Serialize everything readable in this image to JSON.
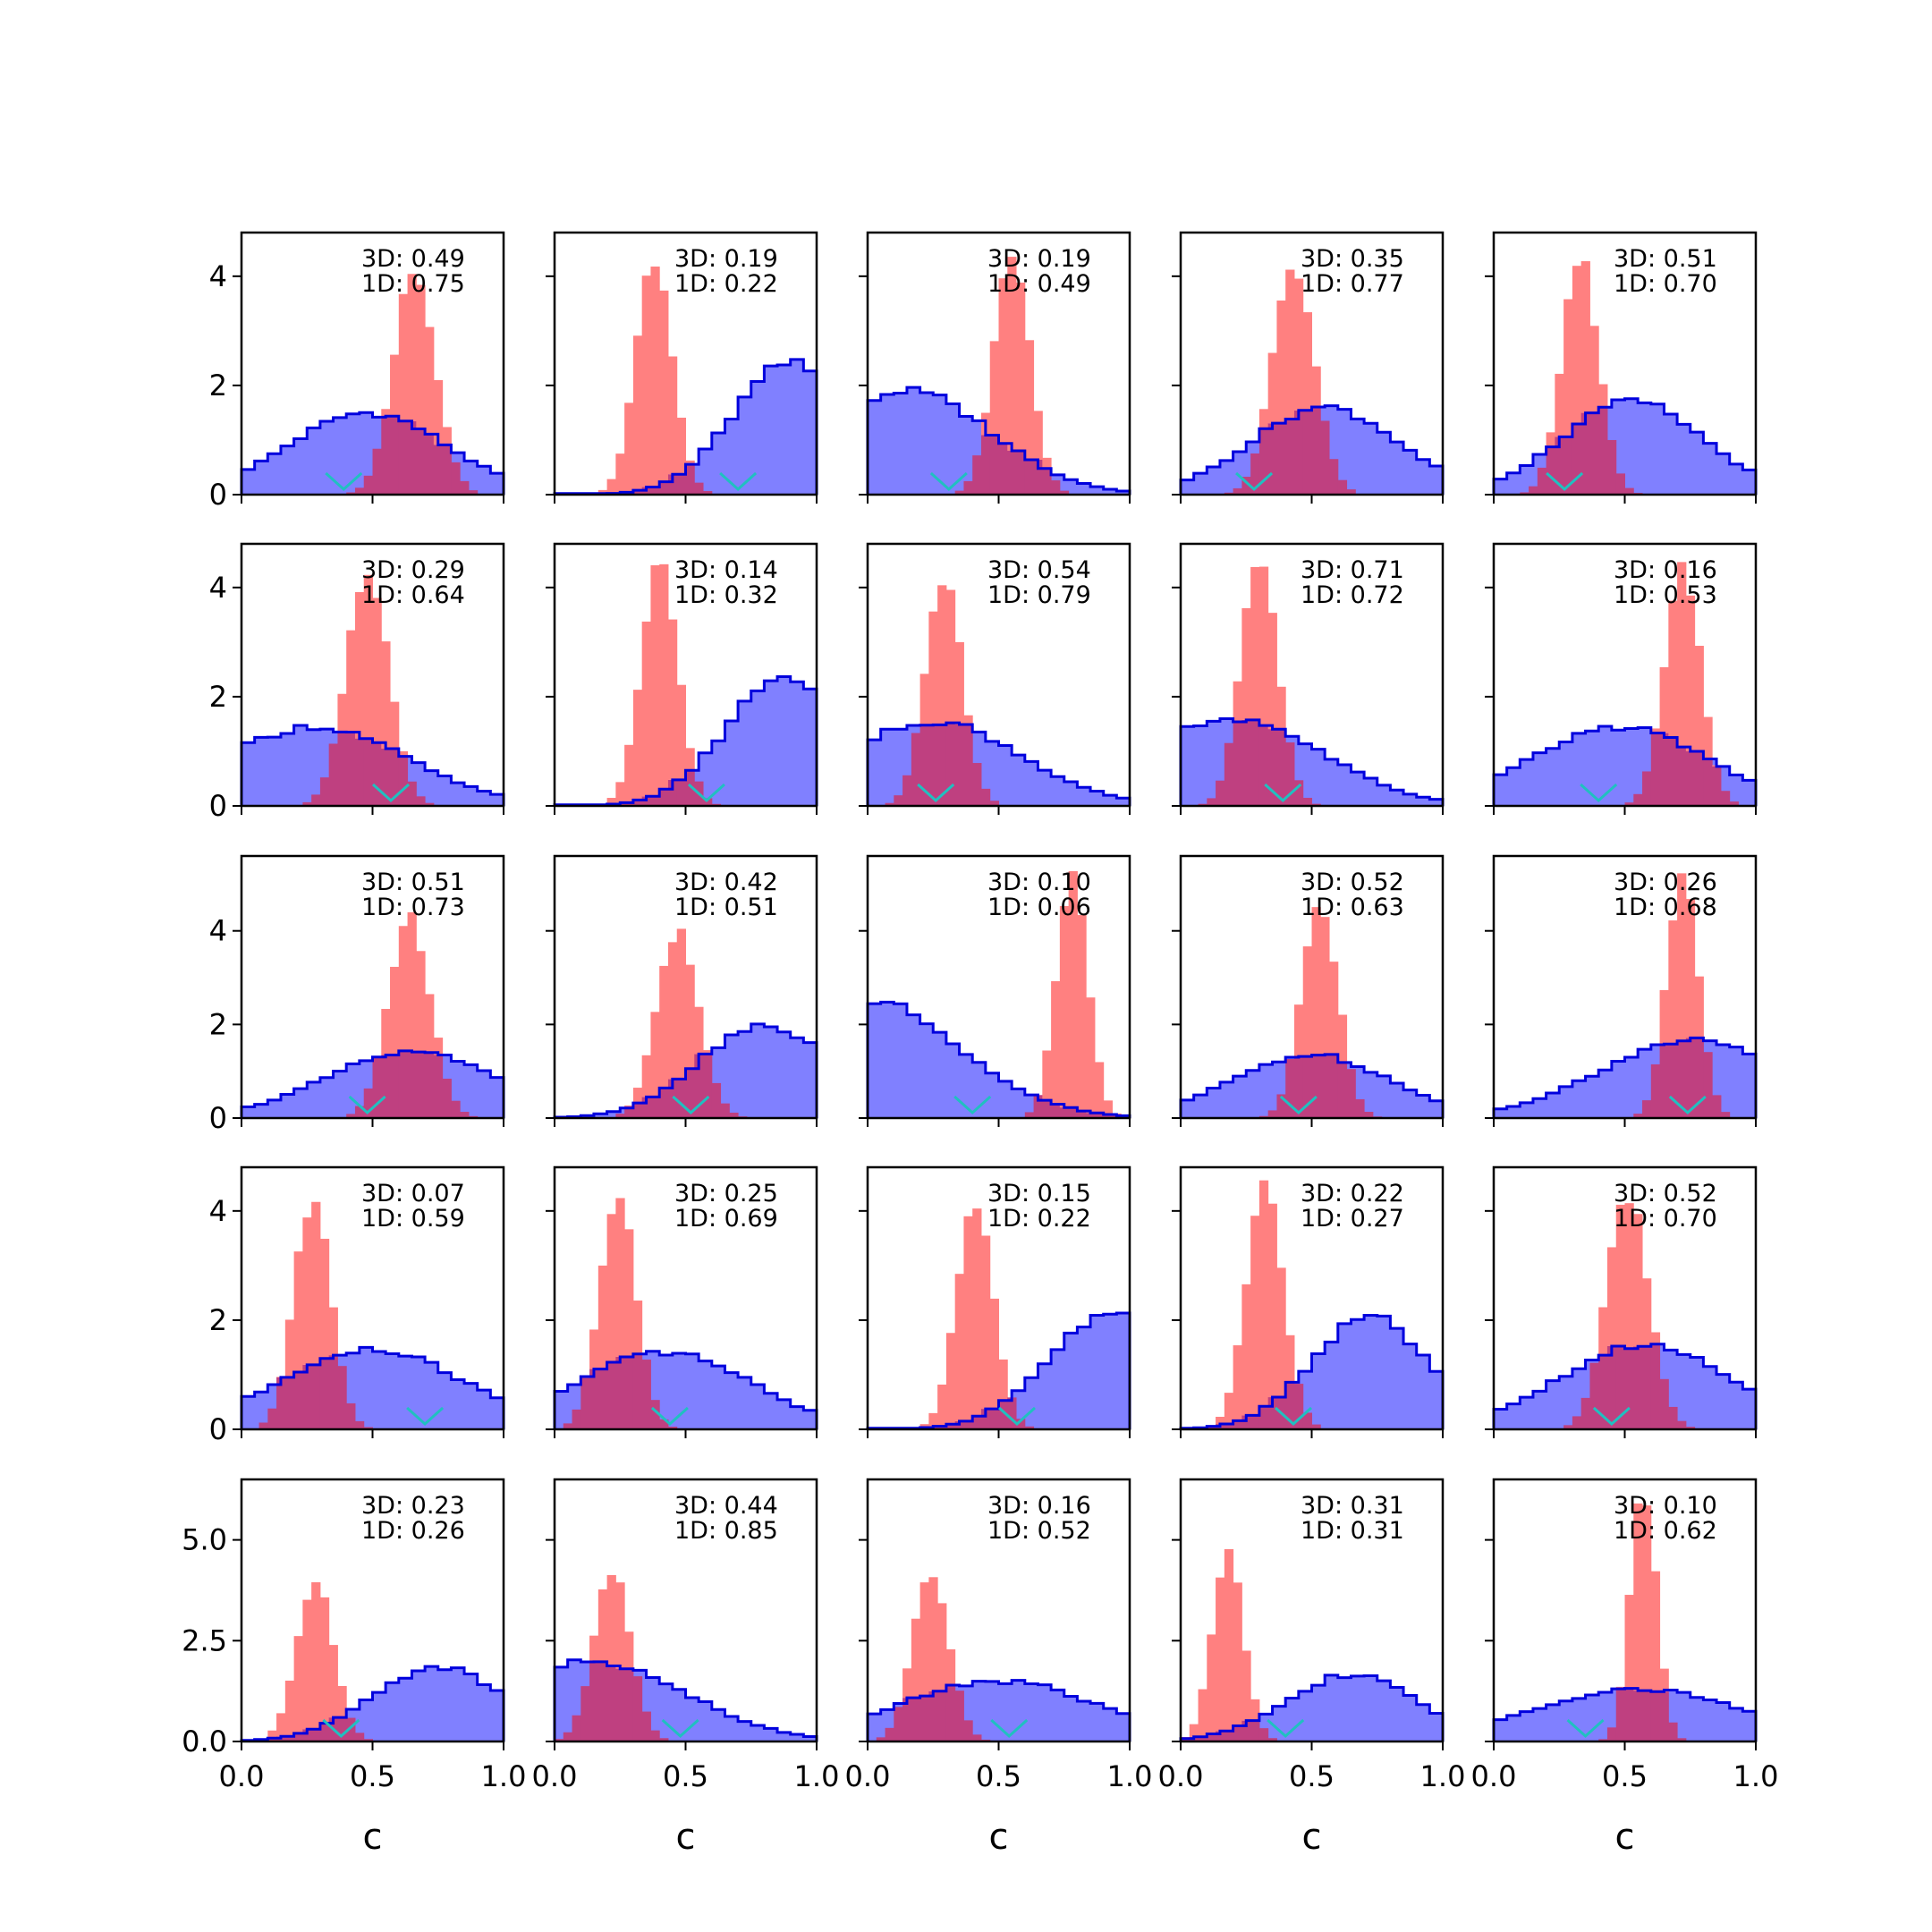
{
  "figure": {
    "colors": {
      "blue_fill": "#8080ff",
      "blue_edge": "#0000dd",
      "red_fill": "#ff8080",
      "overlap_fill": "#bf4080",
      "overlap_edge": "#6a0a6a",
      "marker": "#20c0c0",
      "axes": "#000000"
    }
  },
  "chart_data": [
    {
      "type": "histogram",
      "row": 0,
      "col": 0,
      "annotation": [
        "3D: 0.49",
        "1D: 0.75"
      ],
      "ylim": [
        0,
        4.8
      ],
      "yticks": [
        0,
        2,
        4
      ],
      "xlim": [
        0,
        1
      ],
      "marker_x": 0.39,
      "blue": {
        "peak": 0.48,
        "spread": 0.3,
        "height": 1.5
      },
      "red": {
        "peak": 0.66,
        "spread": 0.08,
        "height": 4.1
      }
    },
    {
      "type": "histogram",
      "row": 0,
      "col": 1,
      "annotation": [
        "3D: 0.19",
        "1D: 0.22"
      ],
      "ylim": [
        0,
        4.8
      ],
      "yticks": [
        0,
        2,
        4
      ],
      "xlim": [
        0,
        1
      ],
      "marker_x": 0.7,
      "blue": {
        "peak": 0.9,
        "spread": 0.22,
        "height": 2.4
      },
      "red": {
        "peak": 0.38,
        "spread": 0.07,
        "height": 4.3
      }
    },
    {
      "type": "histogram",
      "row": 0,
      "col": 2,
      "annotation": [
        "3D: 0.19",
        "1D: 0.49"
      ],
      "ylim": [
        0,
        4.8
      ],
      "yticks": [
        0,
        2,
        4
      ],
      "xlim": [
        0,
        1
      ],
      "marker_x": 0.31,
      "blue": {
        "peak": 0.15,
        "spread": 0.32,
        "height": 1.9
      },
      "red": {
        "peak": 0.55,
        "spread": 0.07,
        "height": 4.3
      }
    },
    {
      "type": "histogram",
      "row": 0,
      "col": 3,
      "annotation": [
        "3D: 0.35",
        "1D: 0.77"
      ],
      "ylim": [
        0,
        4.8
      ],
      "yticks": [
        0,
        2,
        4
      ],
      "xlim": [
        0,
        1
      ],
      "marker_x": 0.28,
      "blue": {
        "peak": 0.55,
        "spread": 0.28,
        "height": 1.6
      },
      "red": {
        "peak": 0.43,
        "spread": 0.08,
        "height": 4.2
      }
    },
    {
      "type": "histogram",
      "row": 0,
      "col": 4,
      "annotation": [
        "3D: 0.51",
        "1D: 0.70"
      ],
      "ylim": [
        0,
        4.8
      ],
      "yticks": [
        0,
        2,
        4
      ],
      "xlim": [
        0,
        1
      ],
      "marker_x": 0.27,
      "blue": {
        "peak": 0.53,
        "spread": 0.27,
        "height": 1.7
      },
      "red": {
        "peak": 0.33,
        "spread": 0.07,
        "height": 4.3
      }
    },
    {
      "type": "histogram",
      "row": 1,
      "col": 0,
      "annotation": [
        "3D: 0.29",
        "1D: 0.64"
      ],
      "ylim": [
        0,
        4.8
      ],
      "yticks": [
        0,
        2,
        4
      ],
      "xlim": [
        0,
        1
      ],
      "marker_x": 0.57,
      "blue": {
        "peak": 0.28,
        "spread": 0.35,
        "height": 1.45
      },
      "red": {
        "peak": 0.48,
        "spread": 0.08,
        "height": 4.3
      }
    },
    {
      "type": "histogram",
      "row": 1,
      "col": 1,
      "annotation": [
        "3D: 0.14",
        "1D: 0.32"
      ],
      "ylim": [
        0,
        4.8
      ],
      "yticks": [
        0,
        2,
        4
      ],
      "xlim": [
        0,
        1
      ],
      "marker_x": 0.58,
      "blue": {
        "peak": 0.87,
        "spread": 0.22,
        "height": 2.3
      },
      "red": {
        "peak": 0.4,
        "spread": 0.07,
        "height": 4.4
      }
    },
    {
      "type": "histogram",
      "row": 1,
      "col": 2,
      "annotation": [
        "3D: 0.54",
        "1D: 0.79"
      ],
      "ylim": [
        0,
        4.8
      ],
      "yticks": [
        0,
        2,
        4
      ],
      "xlim": [
        0,
        1
      ],
      "marker_x": 0.26,
      "blue": {
        "peak": 0.25,
        "spread": 0.33,
        "height": 1.55
      },
      "red": {
        "peak": 0.29,
        "spread": 0.07,
        "height": 4.2
      }
    },
    {
      "type": "histogram",
      "row": 1,
      "col": 3,
      "annotation": [
        "3D: 0.71",
        "1D: 0.72"
      ],
      "ylim": [
        0,
        4.8
      ],
      "yticks": [
        0,
        2,
        4
      ],
      "xlim": [
        0,
        1
      ],
      "marker_x": 0.39,
      "blue": {
        "peak": 0.2,
        "spread": 0.34,
        "height": 1.6
      },
      "red": {
        "peak": 0.3,
        "spread": 0.07,
        "height": 4.5
      }
    },
    {
      "type": "histogram",
      "row": 1,
      "col": 4,
      "annotation": [
        "3D: 0.16",
        "1D: 0.53"
      ],
      "ylim": [
        0,
        4.8
      ],
      "yticks": [
        0,
        2,
        4
      ],
      "xlim": [
        0,
        1
      ],
      "marker_x": 0.4,
      "blue": {
        "peak": 0.48,
        "spread": 0.33,
        "height": 1.45
      },
      "red": {
        "peak": 0.72,
        "spread": 0.07,
        "height": 4.3
      }
    },
    {
      "type": "histogram",
      "row": 2,
      "col": 0,
      "annotation": [
        "3D: 0.51",
        "1D: 0.73"
      ],
      "ylim": [
        0,
        5.6
      ],
      "yticks": [
        0,
        2,
        4
      ],
      "xlim": [
        0,
        1
      ],
      "marker_x": 0.48,
      "blue": {
        "peak": 0.65,
        "spread": 0.33,
        "height": 1.4
      },
      "red": {
        "peak": 0.64,
        "spread": 0.08,
        "height": 4.3
      }
    },
    {
      "type": "histogram",
      "row": 2,
      "col": 1,
      "annotation": [
        "3D: 0.42",
        "1D: 0.51"
      ],
      "ylim": [
        0,
        5.6
      ],
      "yticks": [
        0,
        2,
        4
      ],
      "xlim": [
        0,
        1
      ],
      "marker_x": 0.52,
      "blue": {
        "peak": 0.8,
        "spread": 0.25,
        "height": 2.0
      },
      "red": {
        "peak": 0.47,
        "spread": 0.08,
        "height": 4.0
      }
    },
    {
      "type": "histogram",
      "row": 2,
      "col": 2,
      "annotation": [
        "3D: 0.10",
        "1D: 0.06"
      ],
      "ylim": [
        0,
        5.6
      ],
      "yticks": [
        0,
        2,
        4
      ],
      "xlim": [
        0,
        1
      ],
      "marker_x": 0.4,
      "blue": {
        "peak": 0.0,
        "spread": 0.35,
        "height": 2.5
      },
      "red": {
        "peak": 0.78,
        "spread": 0.06,
        "height": 5.2
      }
    },
    {
      "type": "histogram",
      "row": 2,
      "col": 3,
      "annotation": [
        "3D: 0.52",
        "1D: 0.63"
      ],
      "ylim": [
        0,
        5.6
      ],
      "yticks": [
        0,
        2,
        4
      ],
      "xlim": [
        0,
        1
      ],
      "marker_x": 0.45,
      "blue": {
        "peak": 0.5,
        "spread": 0.3,
        "height": 1.35
      },
      "red": {
        "peak": 0.53,
        "spread": 0.07,
        "height": 4.6
      }
    },
    {
      "type": "histogram",
      "row": 2,
      "col": 4,
      "annotation": [
        "3D: 0.26",
        "1D: 0.68"
      ],
      "ylim": [
        0,
        5.6
      ],
      "yticks": [
        0,
        2,
        4
      ],
      "xlim": [
        0,
        1
      ],
      "marker_x": 0.74,
      "blue": {
        "peak": 0.75,
        "spread": 0.35,
        "height": 1.65
      },
      "red": {
        "peak": 0.72,
        "spread": 0.06,
        "height": 5.2
      }
    },
    {
      "type": "histogram",
      "row": 3,
      "col": 0,
      "annotation": [
        "3D: 0.07",
        "1D: 0.59"
      ],
      "ylim": [
        0,
        4.8
      ],
      "yticks": [
        0,
        2,
        4
      ],
      "xlim": [
        0,
        1
      ],
      "marker_x": 0.7,
      "blue": {
        "peak": 0.5,
        "spread": 0.35,
        "height": 1.45
      },
      "red": {
        "peak": 0.27,
        "spread": 0.07,
        "height": 4.2
      }
    },
    {
      "type": "histogram",
      "row": 3,
      "col": 1,
      "annotation": [
        "3D: 0.25",
        "1D: 0.69"
      ],
      "ylim": [
        0,
        4.8
      ],
      "yticks": [
        0,
        2,
        4
      ],
      "xlim": [
        0,
        1
      ],
      "marker_x": 0.44,
      "blue": {
        "peak": 0.42,
        "spread": 0.33,
        "height": 1.4
      },
      "red": {
        "peak": 0.24,
        "spread": 0.07,
        "height": 4.3
      }
    },
    {
      "type": "histogram",
      "row": 3,
      "col": 2,
      "annotation": [
        "3D: 0.15",
        "1D: 0.22"
      ],
      "ylim": [
        0,
        4.8
      ],
      "yticks": [
        0,
        2,
        4
      ],
      "xlim": [
        0,
        1
      ],
      "marker_x": 0.57,
      "blue": {
        "peak": 0.95,
        "spread": 0.25,
        "height": 2.2
      },
      "red": {
        "peak": 0.41,
        "spread": 0.07,
        "height": 4.2
      }
    },
    {
      "type": "histogram",
      "row": 3,
      "col": 3,
      "annotation": [
        "3D: 0.22",
        "1D: 0.27"
      ],
      "ylim": [
        0,
        4.8
      ],
      "yticks": [
        0,
        2,
        4
      ],
      "xlim": [
        0,
        1
      ],
      "marker_x": 0.43,
      "blue": {
        "peak": 0.72,
        "spread": 0.22,
        "height": 2.05
      },
      "red": {
        "peak": 0.32,
        "spread": 0.07,
        "height": 4.5
      }
    },
    {
      "type": "histogram",
      "row": 3,
      "col": 4,
      "annotation": [
        "3D: 0.52",
        "1D: 0.70"
      ],
      "ylim": [
        0,
        4.8
      ],
      "yticks": [
        0,
        2,
        4
      ],
      "xlim": [
        0,
        1
      ],
      "marker_x": 0.45,
      "blue": {
        "peak": 0.58,
        "spread": 0.33,
        "height": 1.55
      },
      "red": {
        "peak": 0.51,
        "spread": 0.08,
        "height": 4.3
      }
    },
    {
      "type": "histogram",
      "row": 4,
      "col": 0,
      "annotation": [
        "3D: 0.23",
        "1D: 0.26"
      ],
      "ylim": [
        0,
        6.5
      ],
      "yticks": [
        0.0,
        2.5,
        5.0
      ],
      "ytick_labels": [
        "0.0",
        "2.5",
        "5.0"
      ],
      "xlim": [
        0,
        1
      ],
      "xticks": [
        0.0,
        0.5,
        1.0
      ],
      "xtick_labels": [
        "0.0",
        "0.5",
        "1.0"
      ],
      "xlabel": "c",
      "marker_x": 0.38,
      "blue": {
        "peak": 0.75,
        "spread": 0.25,
        "height": 1.85
      },
      "red": {
        "peak": 0.28,
        "spread": 0.07,
        "height": 4.0
      }
    },
    {
      "type": "histogram",
      "row": 4,
      "col": 1,
      "annotation": [
        "3D: 0.44",
        "1D: 0.85"
      ],
      "ylim": [
        0,
        6.5
      ],
      "yticks": [
        0.0,
        2.5,
        5.0
      ],
      "xlim": [
        0,
        1
      ],
      "xticks": [
        0.0,
        0.5,
        1.0
      ],
      "xtick_labels": [
        "0.0",
        "0.5",
        "1.0"
      ],
      "xlabel": "c",
      "marker_x": 0.48,
      "blue": {
        "peak": 0.15,
        "spread": 0.35,
        "height": 2.0
      },
      "red": {
        "peak": 0.22,
        "spread": 0.07,
        "height": 4.2
      }
    },
    {
      "type": "histogram",
      "row": 4,
      "col": 2,
      "annotation": [
        "3D: 0.16",
        "1D: 0.52"
      ],
      "ylim": [
        0,
        6.5
      ],
      "yticks": [
        0.0,
        2.5,
        5.0
      ],
      "xlim": [
        0,
        1
      ],
      "xticks": [
        0.0,
        0.5,
        1.0
      ],
      "xtick_labels": [
        "0.0",
        "0.5",
        "1.0"
      ],
      "xlabel": "c",
      "marker_x": 0.54,
      "blue": {
        "peak": 0.5,
        "spread": 0.38,
        "height": 1.5
      },
      "red": {
        "peak": 0.24,
        "spread": 0.07,
        "height": 4.2
      }
    },
    {
      "type": "histogram",
      "row": 4,
      "col": 3,
      "annotation": [
        "3D: 0.31",
        "1D: 0.31"
      ],
      "ylim": [
        0,
        6.5
      ],
      "yticks": [
        0.0,
        2.5,
        5.0
      ],
      "xlim": [
        0,
        1
      ],
      "xticks": [
        0.0,
        0.5,
        1.0
      ],
      "xtick_labels": [
        "0.0",
        "0.5",
        "1.0"
      ],
      "xlabel": "c",
      "marker_x": 0.4,
      "blue": {
        "peak": 0.65,
        "spread": 0.25,
        "height": 1.65
      },
      "red": {
        "peak": 0.18,
        "spread": 0.06,
        "height": 4.6
      }
    },
    {
      "type": "histogram",
      "row": 4,
      "col": 4,
      "annotation": [
        "3D: 0.10",
        "1D: 0.62"
      ],
      "ylim": [
        0,
        6.5
      ],
      "yticks": [
        0.0,
        2.5,
        5.0
      ],
      "xlim": [
        0,
        1
      ],
      "xticks": [
        0.0,
        0.5,
        1.0
      ],
      "xtick_labels": [
        "0.0",
        "0.5",
        "1.0"
      ],
      "xlabel": "c",
      "marker_x": 0.35,
      "blue": {
        "peak": 0.55,
        "spread": 0.4,
        "height": 1.3
      },
      "red": {
        "peak": 0.57,
        "spread": 0.05,
        "height": 6.3
      }
    }
  ]
}
